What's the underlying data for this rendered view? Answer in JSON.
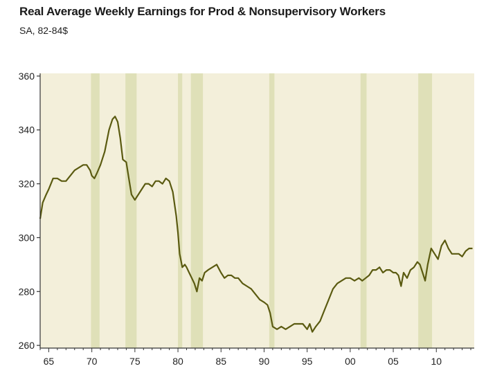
{
  "chart_data": {
    "type": "line",
    "title": "Real Average Weekly Earnings for Prod & Nonsupervisory Workers",
    "subtitle": "SA, 82-84$",
    "xlabel": "",
    "ylabel": "",
    "xlim": [
      1964,
      2014.4
    ],
    "ylim": [
      259,
      361
    ],
    "yticks": [
      260,
      280,
      300,
      320,
      340,
      360
    ],
    "xticks": [
      {
        "value": 1965,
        "label": "65"
      },
      {
        "value": 1970,
        "label": "70"
      },
      {
        "value": 1975,
        "label": "75"
      },
      {
        "value": 1980,
        "label": "80"
      },
      {
        "value": 1985,
        "label": "85"
      },
      {
        "value": 1990,
        "label": "90"
      },
      {
        "value": 1995,
        "label": "95"
      },
      {
        "value": 2000,
        "label": "00"
      },
      {
        "value": 2005,
        "label": "05"
      },
      {
        "value": 2010,
        "label": "10"
      }
    ],
    "recessions": [
      [
        1969.9,
        1970.9
      ],
      [
        1973.9,
        1975.2
      ],
      [
        1980.0,
        1980.5
      ],
      [
        1981.5,
        1982.9
      ],
      [
        1990.6,
        1991.2
      ],
      [
        2001.2,
        2001.9
      ],
      [
        2007.9,
        2009.5
      ]
    ],
    "series": [
      {
        "name": "Real Average Weekly Earnings",
        "color": "#5a5a10",
        "x": [
          1964.0,
          1964.3,
          1964.7,
          1965.0,
          1965.5,
          1966.0,
          1966.5,
          1967.0,
          1967.5,
          1968.0,
          1968.5,
          1969.0,
          1969.4,
          1969.8,
          1970.0,
          1970.3,
          1970.6,
          1971.0,
          1971.5,
          1972.0,
          1972.4,
          1972.7,
          1973.0,
          1973.3,
          1973.6,
          1974.0,
          1974.3,
          1974.6,
          1975.0,
          1975.4,
          1975.8,
          1976.2,
          1976.6,
          1977.0,
          1977.4,
          1977.8,
          1978.2,
          1978.6,
          1979.0,
          1979.4,
          1979.8,
          1980.0,
          1980.2,
          1980.5,
          1980.8,
          1981.0,
          1981.3,
          1981.6,
          1981.9,
          1982.2,
          1982.5,
          1982.8,
          1983.1,
          1983.5,
          1984.0,
          1984.5,
          1985.0,
          1985.4,
          1985.8,
          1986.2,
          1986.6,
          1987.0,
          1987.5,
          1988.0,
          1988.5,
          1989.0,
          1989.5,
          1990.0,
          1990.4,
          1990.7,
          1991.0,
          1991.5,
          1992.0,
          1992.5,
          1993.0,
          1993.5,
          1994.0,
          1994.5,
          1995.0,
          1995.3,
          1995.6,
          1996.0,
          1996.5,
          1997.0,
          1997.5,
          1998.0,
          1998.5,
          1999.0,
          1999.5,
          2000.0,
          2000.5,
          2001.0,
          2001.4,
          2001.8,
          2002.2,
          2002.6,
          2003.0,
          2003.4,
          2003.8,
          2004.2,
          2004.6,
          2005.0,
          2005.3,
          2005.6,
          2005.9,
          2006.2,
          2006.6,
          2007.0,
          2007.4,
          2007.8,
          2008.1,
          2008.4,
          2008.7,
          2009.0,
          2009.4,
          2009.8,
          2010.2,
          2010.6,
          2011.0,
          2011.4,
          2011.8,
          2012.2,
          2012.6,
          2013.0,
          2013.4,
          2013.8,
          2014.2
        ],
        "y": [
          307,
          313,
          316,
          318,
          322,
          322,
          321,
          321,
          323,
          325,
          326,
          327,
          327,
          325,
          323,
          322,
          324,
          327,
          332,
          340,
          344,
          345,
          343,
          337,
          329,
          328,
          322,
          316,
          314,
          316,
          318,
          320,
          320,
          319,
          321,
          321,
          320,
          322,
          321,
          317,
          308,
          302,
          294,
          289,
          290,
          289,
          287,
          285,
          283,
          280,
          285,
          284,
          287,
          288,
          289,
          290,
          287,
          285,
          286,
          286,
          285,
          285,
          283,
          282,
          281,
          279,
          277,
          276,
          275,
          272,
          267,
          266,
          267,
          266,
          267,
          268,
          268,
          268,
          266,
          268,
          265,
          267,
          269,
          273,
          277,
          281,
          283,
          284,
          285,
          285,
          284,
          285,
          284,
          285,
          286,
          288,
          288,
          289,
          287,
          288,
          288,
          287,
          287,
          286,
          282,
          287,
          285,
          288,
          289,
          291,
          290,
          287,
          284,
          290,
          296,
          294,
          292,
          297,
          299,
          296,
          294,
          294,
          294,
          293,
          295,
          296,
          296
        ]
      }
    ]
  }
}
